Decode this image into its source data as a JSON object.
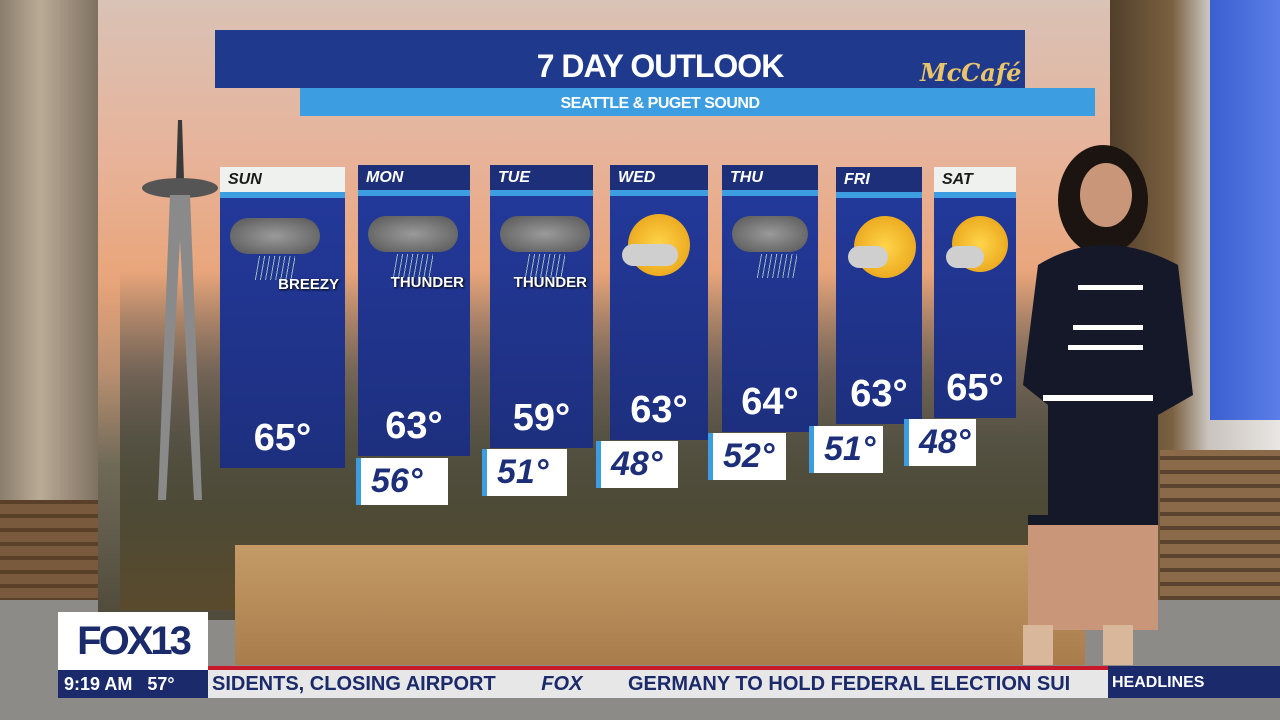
{
  "graphic": {
    "title": "7 DAY OUTLOOK",
    "subtitle": "SEATTLE & PUGET SOUND",
    "sponsor": "McCafé",
    "days": [
      {
        "day": "SUN",
        "high": "65°",
        "low": "",
        "condition": "BREEZY",
        "icon": "cloud-rain-icon"
      },
      {
        "day": "MON",
        "high": "63°",
        "low": "56°",
        "condition": "THUNDER",
        "icon": "thunderstorm-icon"
      },
      {
        "day": "TUE",
        "high": "59°",
        "low": "51°",
        "condition": "THUNDER",
        "icon": "thunderstorm-icon"
      },
      {
        "day": "WED",
        "high": "63°",
        "low": "48°",
        "condition": "",
        "icon": "partly-sunny-icon"
      },
      {
        "day": "THU",
        "high": "64°",
        "low": "52°",
        "condition": "",
        "icon": "cloud-rain-icon"
      },
      {
        "day": "FRI",
        "high": "63°",
        "low": "51°",
        "condition": "",
        "icon": "partly-sunny-icon"
      },
      {
        "day": "SAT",
        "high": "65°",
        "low": "48°",
        "condition": "",
        "icon": "partly-sunny-icon"
      }
    ],
    "colors": {
      "navy": "#1d2f78",
      "accent": "#3c9ee0"
    }
  },
  "lower_third": {
    "station": "FOX13",
    "time": "9:19 AM",
    "temperature": "57°",
    "ticker_left": "SIDENTS, CLOSING AIRPORT",
    "ticker_brand": "FOX",
    "ticker_right": "GERMANY TO HOLD FEDERAL ELECTION SUI",
    "section": "HEADLINES"
  }
}
